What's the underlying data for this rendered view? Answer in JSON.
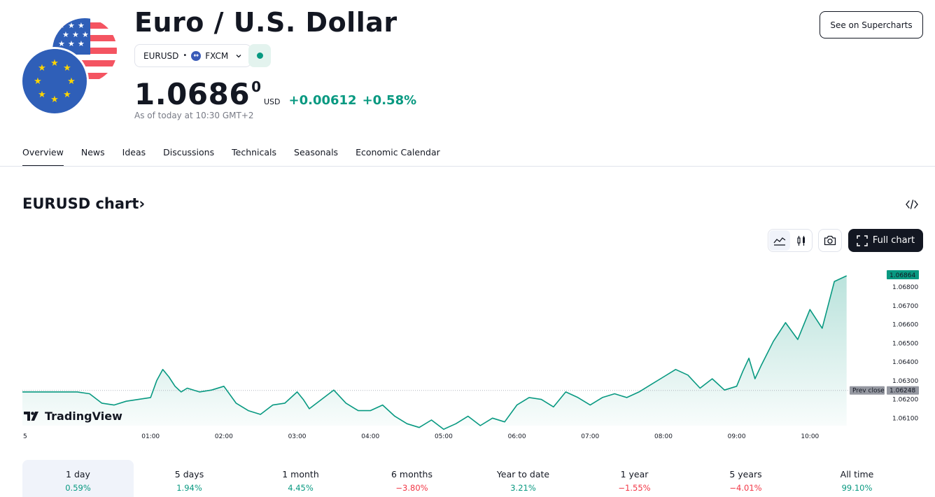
{
  "header": {
    "title": "Euro / U.S. Dollar",
    "symbol": "EURUSD",
    "exchange": "FXCM",
    "exchange_logo_letter": "↔",
    "market_status_color": "#089981",
    "price_main": "1.0686",
    "price_sup": "0",
    "currency": "USD",
    "change": "+0.00612",
    "change_percent": "+0.58%",
    "as_of": "As of today at 10:30 GMT+2",
    "supercharts_label": "See on Supercharts"
  },
  "tabs": [
    {
      "label": "Overview",
      "active": true
    },
    {
      "label": "News"
    },
    {
      "label": "Ideas"
    },
    {
      "label": "Discussions"
    },
    {
      "label": "Technicals"
    },
    {
      "label": "Seasonals"
    },
    {
      "label": "Economic Calendar"
    }
  ],
  "chart_section": {
    "title": "EURUSD chart",
    "title_arrow": "›",
    "full_chart_label": "Full chart",
    "branding": "TradingView"
  },
  "chart_data": {
    "type": "area",
    "symbol": "EURUSD",
    "x_ticks": [
      "5",
      "01:00",
      "02:00",
      "03:00",
      "04:00",
      "05:00",
      "06:00",
      "07:00",
      "08:00",
      "09:00",
      "10:00"
    ],
    "y_ticks": [
      "1.06800",
      "1.06700",
      "1.06600",
      "1.06500",
      "1.06400",
      "1.06300",
      "1.06200",
      "1.06100"
    ],
    "ylim": [
      1.0606,
      1.0692
    ],
    "current_price_label": "1.06864",
    "prev_close": 1.06248,
    "prev_close_label": "Prev close",
    "prev_close_value_label": "1.06248",
    "x": [
      "00:00",
      "00:10",
      "00:20",
      "00:30",
      "00:40",
      "00:50",
      "01:00",
      "01:05",
      "01:10",
      "01:15",
      "01:20",
      "01:25",
      "01:30",
      "01:40",
      "01:50",
      "02:00",
      "02:10",
      "02:20",
      "02:30",
      "02:40",
      "02:50",
      "03:00",
      "03:05",
      "03:10",
      "03:20",
      "03:30",
      "03:40",
      "03:50",
      "04:00",
      "04:10",
      "04:20",
      "04:30",
      "04:40",
      "04:50",
      "05:00",
      "05:10",
      "05:20",
      "05:30",
      "05:40",
      "05:50",
      "06:00",
      "06:10",
      "06:20",
      "06:30",
      "06:40",
      "06:50",
      "07:00",
      "07:10",
      "07:20",
      "07:30",
      "07:40",
      "07:50",
      "08:00",
      "08:10",
      "08:20",
      "08:30",
      "08:40",
      "08:50",
      "09:00",
      "09:05",
      "09:10",
      "09:15",
      "09:20",
      "09:30",
      "09:40",
      "09:50",
      "10:00",
      "10:10",
      "10:20",
      "10:30"
    ],
    "values": [
      1.0624,
      1.0623,
      1.0618,
      1.0617,
      1.0619,
      1.062,
      1.0621,
      1.063,
      1.0636,
      1.0632,
      1.0627,
      1.0624,
      1.0626,
      1.0624,
      1.0625,
      1.0627,
      1.0618,
      1.0614,
      1.0612,
      1.0617,
      1.0618,
      1.0624,
      1.062,
      1.0615,
      1.062,
      1.0625,
      1.0618,
      1.0614,
      1.0614,
      1.0617,
      1.0611,
      1.0607,
      1.0605,
      1.0609,
      1.0604,
      1.0607,
      1.0611,
      1.0606,
      1.061,
      1.0608,
      1.0617,
      1.0621,
      1.062,
      1.0616,
      1.0624,
      1.0621,
      1.0617,
      1.0621,
      1.0623,
      1.0621,
      1.0624,
      1.0628,
      1.0632,
      1.0636,
      1.0633,
      1.0626,
      1.0631,
      1.0625,
      1.0627,
      1.0635,
      1.0642,
      1.0631,
      1.0638,
      1.0651,
      1.0661,
      1.0652,
      1.0668,
      1.0658,
      1.0683,
      1.0686
    ],
    "line_color": "#089981",
    "grid": false
  },
  "periods": [
    {
      "label": "1 day",
      "value": "0.59%",
      "sign": "pos",
      "active": true
    },
    {
      "label": "5 days",
      "value": "1.94%",
      "sign": "pos"
    },
    {
      "label": "1 month",
      "value": "4.45%",
      "sign": "pos"
    },
    {
      "label": "6 months",
      "value": "−3.80%",
      "sign": "neg"
    },
    {
      "label": "Year to date",
      "value": "3.21%",
      "sign": "pos"
    },
    {
      "label": "1 year",
      "value": "−1.55%",
      "sign": "neg"
    },
    {
      "label": "5 years",
      "value": "−4.01%",
      "sign": "neg"
    },
    {
      "label": "All time",
      "value": "99.10%",
      "sign": "pos"
    }
  ]
}
